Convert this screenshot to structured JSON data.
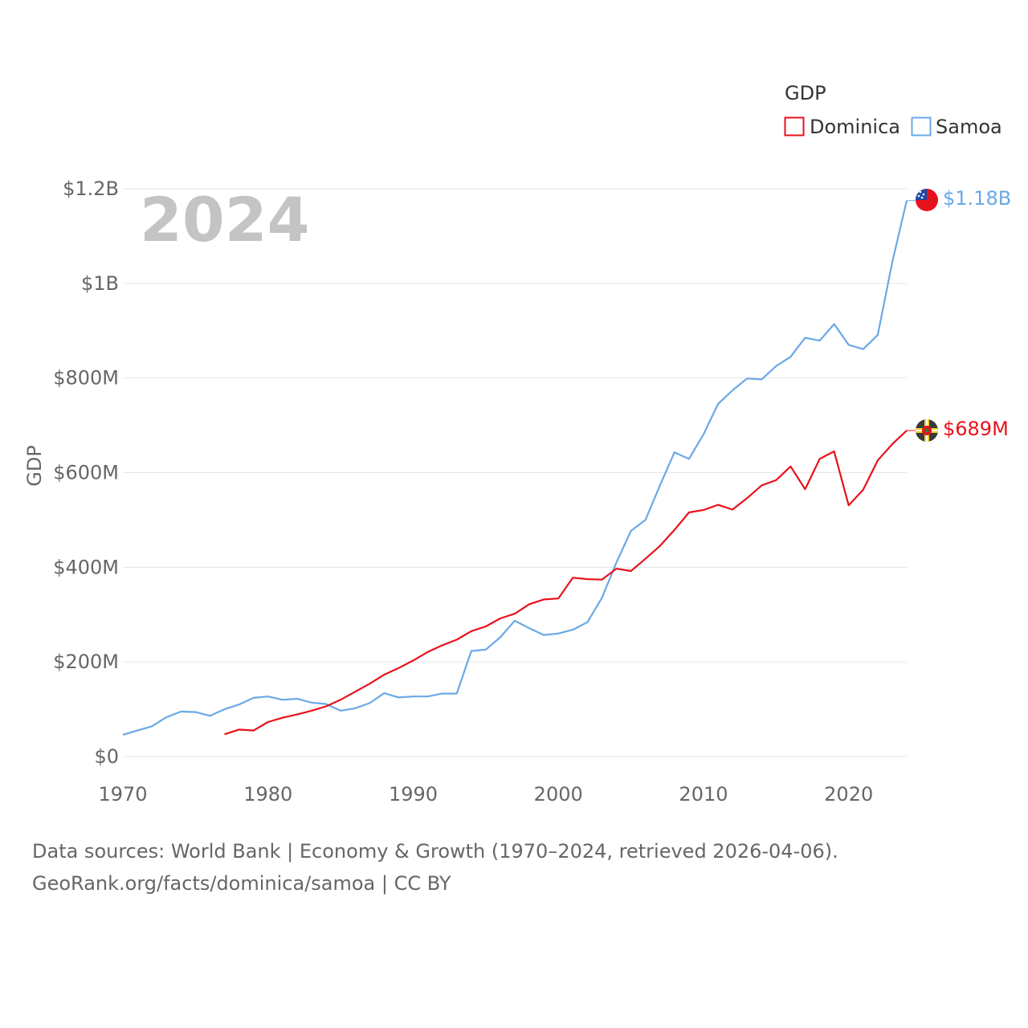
{
  "chart_data": {
    "type": "line",
    "title": "GDP",
    "ylabel": "GDP",
    "xlabel": "",
    "year_label": "2024",
    "xlim": [
      1970,
      2024
    ],
    "ylim": [
      0,
      1200
    ],
    "y_unit": "million USD",
    "x_ticks": [
      1970,
      1980,
      1990,
      2000,
      2010,
      2020
    ],
    "y_ticks": [
      {
        "value": 0,
        "label": "$0"
      },
      {
        "value": 200,
        "label": "$200M"
      },
      {
        "value": 400,
        "label": "$400M"
      },
      {
        "value": 600,
        "label": "$600M"
      },
      {
        "value": 800,
        "label": "$800M"
      },
      {
        "value": 1000,
        "label": "$1B"
      },
      {
        "value": 1200,
        "label": "$1.2B"
      }
    ],
    "legend": {
      "title": "GDP",
      "position": "top-right"
    },
    "series": [
      {
        "name": "Dominica",
        "color": "#e8121c",
        "end_label": "$689M",
        "start_year": 1977,
        "values": [
          47,
          57,
          55,
          73,
          82,
          89,
          97,
          106,
          120,
          137,
          154,
          173,
          187,
          203,
          221,
          235,
          247,
          265,
          275,
          292,
          302,
          322,
          332,
          334,
          378,
          375,
          374,
          397,
          392,
          418,
          445,
          479,
          516,
          521,
          532,
          522,
          546,
          573,
          584,
          613,
          565,
          629,
          645,
          531,
          564,
          626,
          660,
          689
        ]
      },
      {
        "name": "Samoa",
        "color": "#6aa9e6",
        "end_label": "$1.18B",
        "start_year": 1970,
        "values": [
          46,
          55,
          64,
          83,
          95,
          94,
          86,
          100,
          110,
          124,
          127,
          120,
          122,
          114,
          111,
          97,
          102,
          113,
          134,
          125,
          127,
          127,
          133,
          133,
          223,
          226,
          252,
          287,
          271,
          257,
          260,
          268,
          284,
          335,
          410,
          477,
          500,
          573,
          643,
          629,
          681,
          745,
          774,
          799,
          797,
          825,
          845,
          885,
          879,
          914,
          870,
          861,
          891,
          1044,
          1175
        ]
      }
    ],
    "source_lines": [
      "Data sources: World Bank | Economy & Growth (1970–2024, retrieved 2026-04-06).",
      "GeoRank.org/facts/dominica/samoa | CC BY"
    ]
  }
}
